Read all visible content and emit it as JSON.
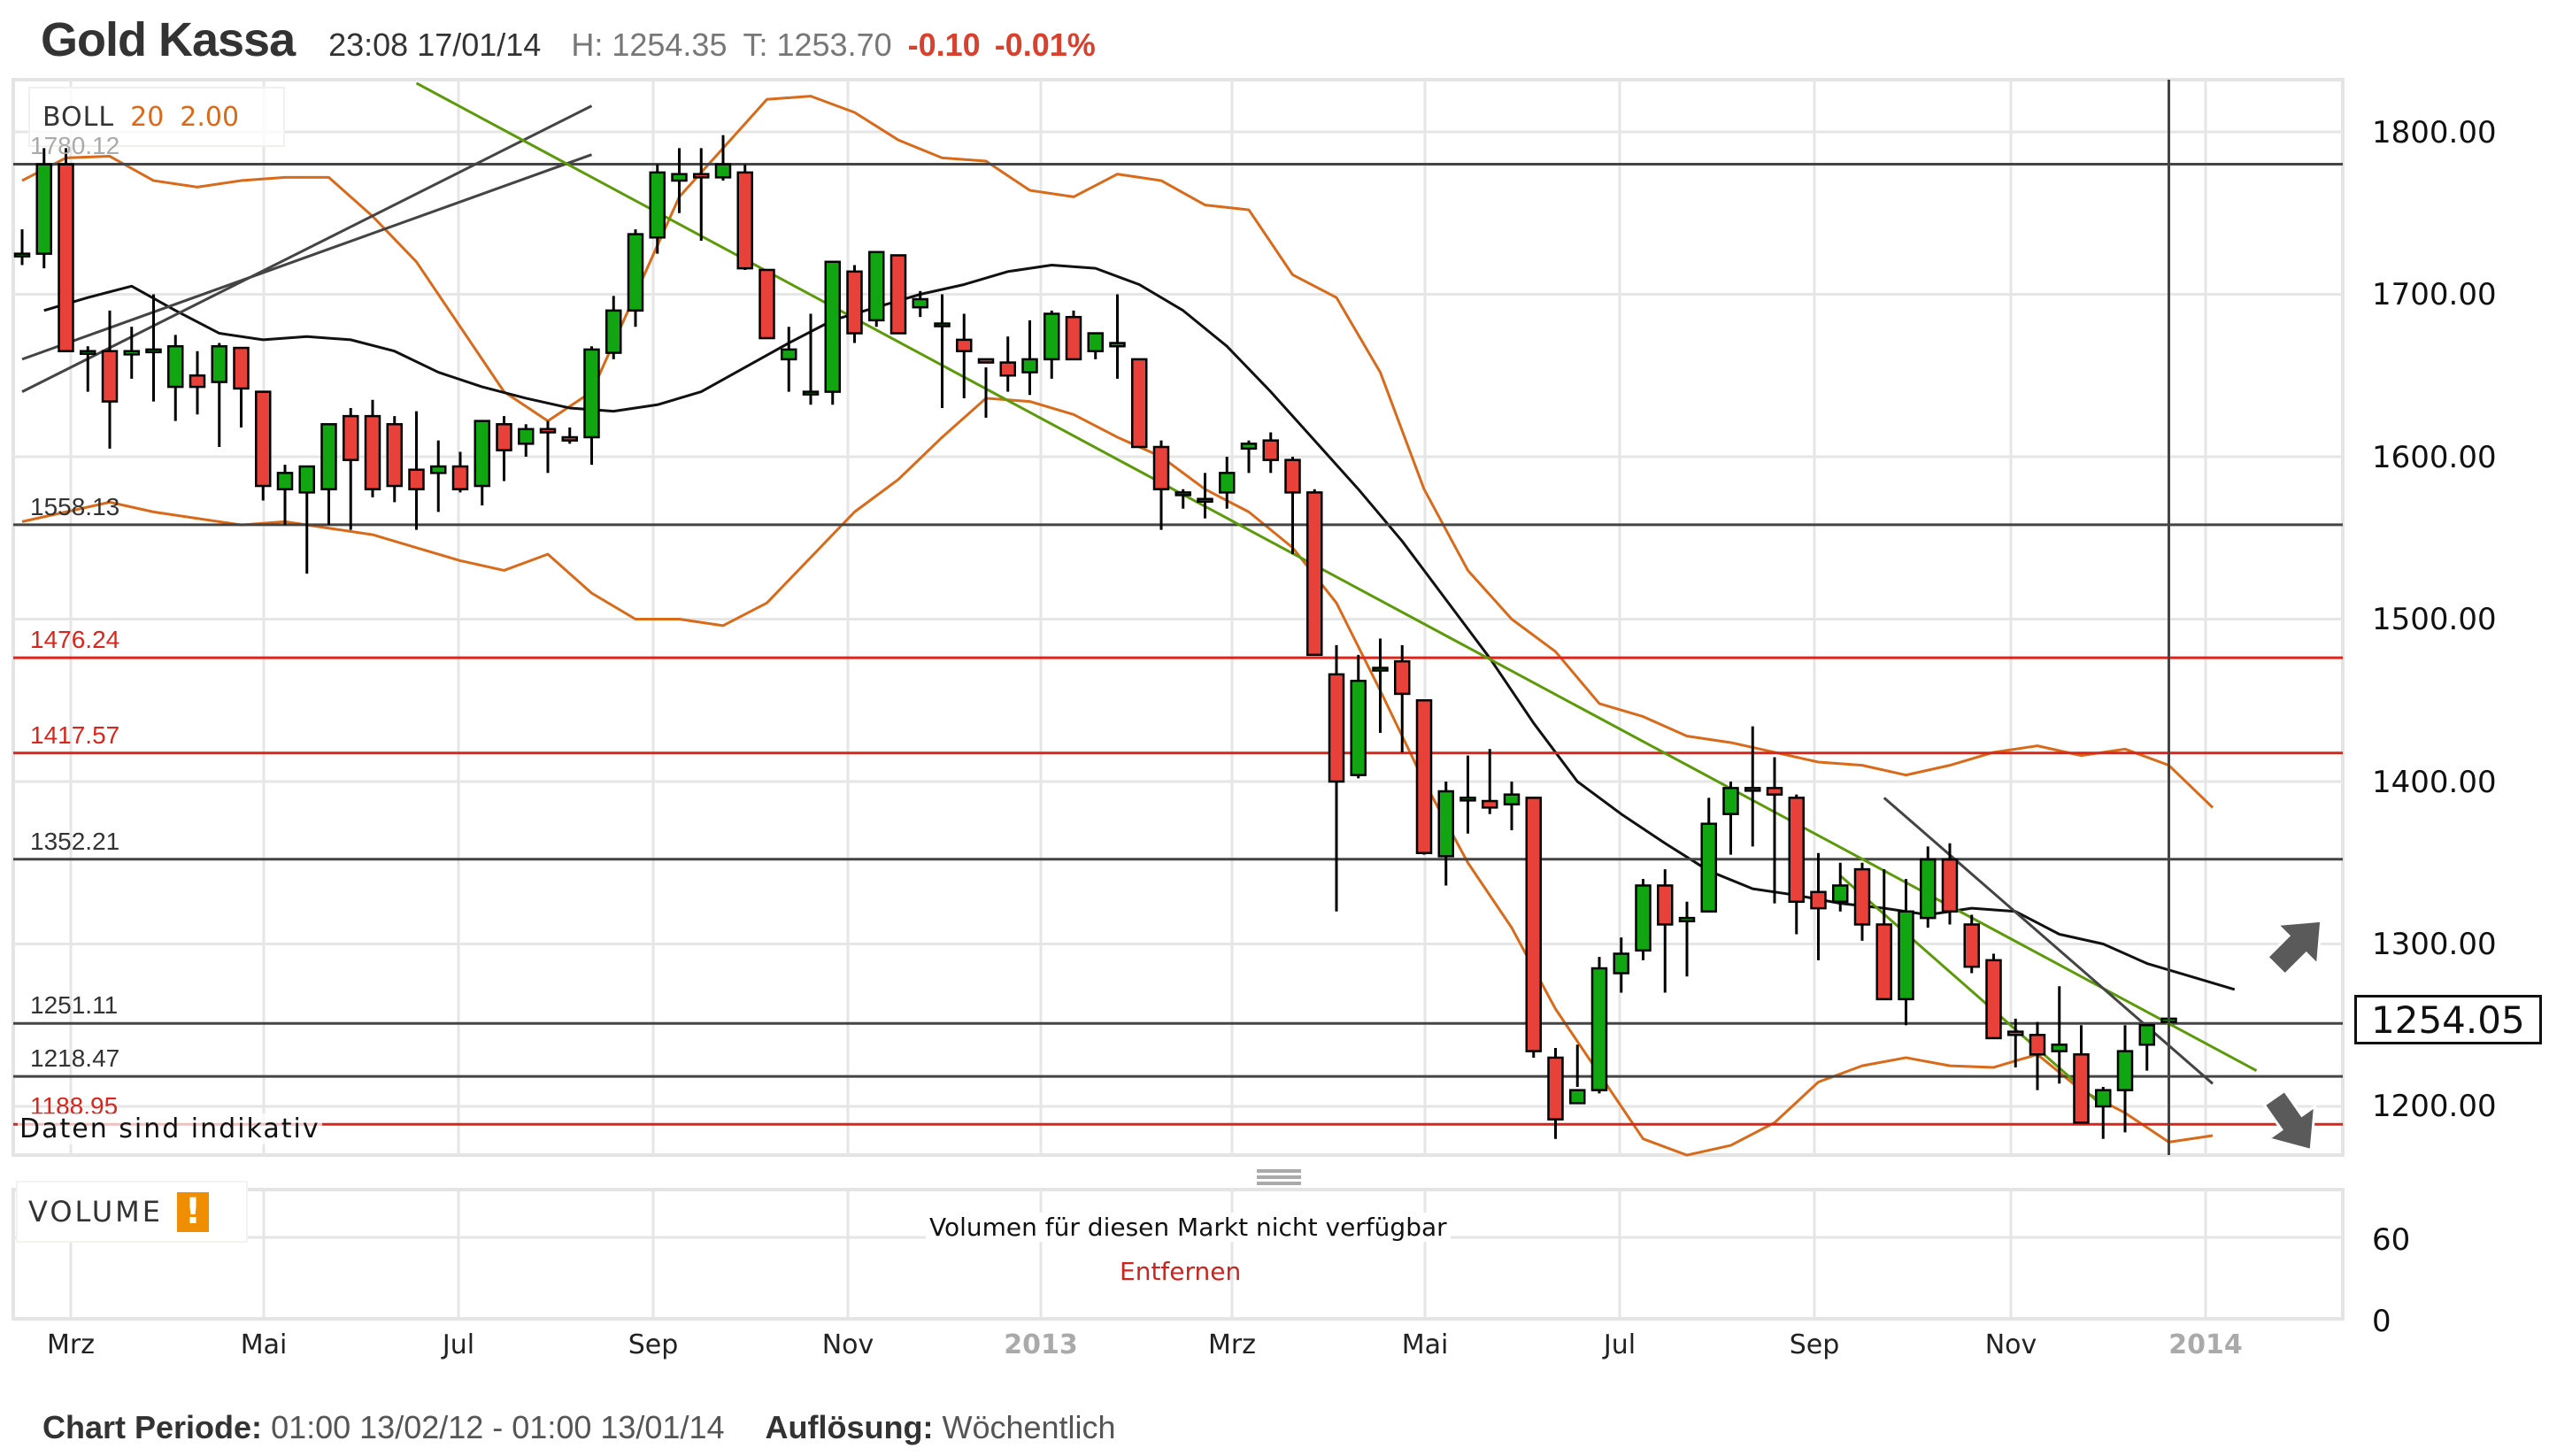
{
  "header": {
    "title": "Gold Kassa",
    "timestamp": "23:08 17/01/14",
    "high": "H: 1254.35",
    "low": "T: 1253.70",
    "change": "-0.10",
    "change_pct": "-0.01%"
  },
  "indicator_legend": {
    "name": "BOLL",
    "period": "20",
    "stddev": "2.00"
  },
  "levels": [
    {
      "value": 1780.12,
      "label": "1780.12",
      "color": "#444444",
      "label_color": "#aaaaaa"
    },
    {
      "value": 1558.13,
      "label": "1558.13",
      "color": "#444444",
      "label_color": "#333333"
    },
    {
      "value": 1476.24,
      "label": "1476.24",
      "color": "#d9261c",
      "label_color": "#d9261c"
    },
    {
      "value": 1417.57,
      "label": "1417.57",
      "color": "#d9261c",
      "label_color": "#d9261c"
    },
    {
      "value": 1352.21,
      "label": "1352.21",
      "color": "#444444",
      "label_color": "#333333"
    },
    {
      "value": 1251.11,
      "label": "1251.11",
      "color": "#444444",
      "label_color": "#333333"
    },
    {
      "value": 1218.47,
      "label": "1218.47",
      "color": "#444444",
      "label_color": "#333333"
    },
    {
      "value": 1188.95,
      "label": "1188.95",
      "color": "#d9261c",
      "label_color": "#d9261c"
    }
  ],
  "disclaimer": "Daten sind indikativ",
  "y_axis": {
    "ticks": [
      "1800.00",
      "1700.00",
      "1600.00",
      "1500.00",
      "1400.00",
      "1300.00",
      "1200.00"
    ],
    "current_price": "1254.05"
  },
  "x_axis": {
    "labels": [
      {
        "text": "Mrz",
        "x": 72,
        "year": false
      },
      {
        "text": "Mai",
        "x": 290,
        "year": false
      },
      {
        "text": "Jul",
        "x": 510,
        "year": false
      },
      {
        "text": "Sep",
        "x": 730,
        "year": false
      },
      {
        "text": "Nov",
        "x": 950,
        "year": false
      },
      {
        "text": "2013",
        "x": 1168,
        "year": true
      },
      {
        "text": "Mrz",
        "x": 1384,
        "year": false
      },
      {
        "text": "Mai",
        "x": 1602,
        "year": false
      },
      {
        "text": "Jul",
        "x": 1822,
        "year": false
      },
      {
        "text": "Sep",
        "x": 2042,
        "year": false
      },
      {
        "text": "Nov",
        "x": 2264,
        "year": false
      },
      {
        "text": "2014",
        "x": 2484,
        "year": true
      }
    ]
  },
  "volume_panel": {
    "name": "VOLUME",
    "warning_icon": "!",
    "message": "Volumen für diesen Markt nicht verfügbar",
    "remove_link": "Entfernen",
    "ticks": [
      "60",
      "0"
    ]
  },
  "footer": {
    "period_label": "Chart Periode:",
    "period_value": "01:00 13/02/12 - 01:00 13/01/14",
    "resolution_label": "Auflösung:",
    "resolution_value": "Wöchentlich"
  },
  "colors": {
    "up": "#12a512",
    "down": "#e8413a",
    "boll_band": "#d96a1a",
    "boll_mid": "#111111",
    "trend_green": "#5c9a0a",
    "trend_gray": "#444444",
    "level_red": "#d9261c"
  },
  "chart_data": {
    "type": "candlestick",
    "title": "Gold Kassa",
    "indicator": "BOLL 20 2.00",
    "xlabel": "",
    "ylabel": "",
    "ylim": [
      1165,
      1830
    ],
    "x_tick_labels": [
      "Mrz",
      "Mai",
      "Jul",
      "Sep",
      "Nov",
      "2013",
      "Mrz",
      "Mai",
      "Jul",
      "Sep",
      "Nov",
      "2014"
    ],
    "y_tick_labels": [
      "1200.00",
      "1300.00",
      "1400.00",
      "1500.00",
      "1600.00",
      "1700.00",
      "1800.00"
    ],
    "horizontal_levels": [
      1780.12,
      1558.13,
      1476.24,
      1417.57,
      1352.21,
      1251.11,
      1218.47,
      1188.95
    ],
    "last_price": 1254.05,
    "candles_ohlc": [
      [
        1725,
        1740,
        1718,
        1725
      ],
      [
        1725,
        1790,
        1716,
        1780
      ],
      [
        1780,
        1790,
        1665,
        1665
      ],
      [
        1665,
        1668,
        1640,
        1665
      ],
      [
        1665,
        1690,
        1605,
        1634
      ],
      [
        1663,
        1680,
        1648,
        1665
      ],
      [
        1666,
        1700,
        1634,
        1666
      ],
      [
        1643,
        1675,
        1622,
        1668
      ],
      [
        1650,
        1665,
        1626,
        1643
      ],
      [
        1646,
        1670,
        1606,
        1668
      ],
      [
        1667,
        1667,
        1618,
        1642
      ],
      [
        1640,
        1640,
        1573,
        1582
      ],
      [
        1580,
        1595,
        1558,
        1590
      ],
      [
        1578,
        1586,
        1528,
        1594
      ],
      [
        1580,
        1618,
        1558,
        1620
      ],
      [
        1625,
        1630,
        1555,
        1598
      ],
      [
        1625,
        1635,
        1575,
        1580
      ],
      [
        1620,
        1625,
        1572,
        1582
      ],
      [
        1592,
        1628,
        1555,
        1580
      ],
      [
        1590,
        1610,
        1566,
        1594
      ],
      [
        1594,
        1603,
        1578,
        1580
      ],
      [
        1582,
        1610,
        1570,
        1622
      ],
      [
        1620,
        1625,
        1585,
        1604
      ],
      [
        1608,
        1620,
        1600,
        1617
      ],
      [
        1617,
        1622,
        1590,
        1615
      ],
      [
        1612,
        1618,
        1608,
        1610
      ],
      [
        1612,
        1668,
        1595,
        1666
      ],
      [
        1664,
        1699,
        1660,
        1690
      ],
      [
        1690,
        1740,
        1680,
        1737
      ],
      [
        1735,
        1780,
        1725,
        1775
      ],
      [
        1770,
        1790,
        1750,
        1774
      ],
      [
        1774,
        1790,
        1733,
        1772
      ],
      [
        1772,
        1798,
        1770,
        1780
      ],
      [
        1775,
        1780,
        1715,
        1716
      ],
      [
        1715,
        1715,
        1680,
        1673
      ],
      [
        1660,
        1680,
        1640,
        1666
      ],
      [
        1640,
        1688,
        1632,
        1640
      ],
      [
        1640,
        1690,
        1632,
        1720
      ],
      [
        1714,
        1718,
        1670,
        1676
      ],
      [
        1684,
        1725,
        1680,
        1726
      ],
      [
        1724,
        1724,
        1680,
        1676
      ],
      [
        1692,
        1702,
        1686,
        1697
      ],
      [
        1682,
        1700,
        1630,
        1682
      ],
      [
        1672,
        1688,
        1636,
        1665
      ],
      [
        1660,
        1655,
        1624,
        1658
      ],
      [
        1658,
        1674,
        1640,
        1650
      ],
      [
        1652,
        1684,
        1638,
        1660
      ],
      [
        1660,
        1690,
        1648,
        1688
      ],
      [
        1686,
        1690,
        1660,
        1660
      ],
      [
        1665,
        1676,
        1660,
        1676
      ],
      [
        1668,
        1700,
        1648,
        1670
      ],
      [
        1660,
        1660,
        1610,
        1606
      ],
      [
        1606,
        1610,
        1555,
        1580
      ],
      [
        1578,
        1580,
        1568,
        1578
      ],
      [
        1574,
        1590,
        1562,
        1574
      ],
      [
        1578,
        1600,
        1568,
        1590
      ],
      [
        1605,
        1610,
        1590,
        1608
      ],
      [
        1610,
        1615,
        1590,
        1598
      ],
      [
        1598,
        1600,
        1540,
        1578
      ],
      [
        1578,
        1580,
        1480,
        1478
      ],
      [
        1466,
        1484,
        1320,
        1400
      ],
      [
        1404,
        1478,
        1402,
        1462
      ],
      [
        1470,
        1488,
        1430,
        1470
      ],
      [
        1474,
        1484,
        1418,
        1454
      ],
      [
        1450,
        1450,
        1355,
        1356
      ],
      [
        1354,
        1400,
        1336,
        1394
      ],
      [
        1390,
        1416,
        1368,
        1390
      ],
      [
        1388,
        1420,
        1380,
        1384
      ],
      [
        1386,
        1400,
        1370,
        1392
      ],
      [
        1390,
        1390,
        1230,
        1234
      ],
      [
        1230,
        1236,
        1180,
        1192
      ],
      [
        1202,
        1238,
        1212,
        1210
      ],
      [
        1210,
        1292,
        1208,
        1285
      ],
      [
        1282,
        1304,
        1270,
        1294
      ],
      [
        1296,
        1340,
        1290,
        1336
      ],
      [
        1336,
        1346,
        1270,
        1312
      ],
      [
        1314,
        1326,
        1280,
        1316
      ],
      [
        1320,
        1390,
        1320,
        1374
      ],
      [
        1380,
        1400,
        1355,
        1396
      ],
      [
        1396,
        1434,
        1360,
        1396
      ],
      [
        1396,
        1415,
        1325,
        1392
      ],
      [
        1390,
        1392,
        1306,
        1326
      ],
      [
        1332,
        1356,
        1290,
        1322
      ],
      [
        1326,
        1350,
        1320,
        1336
      ],
      [
        1346,
        1350,
        1302,
        1312
      ],
      [
        1312,
        1346,
        1270,
        1266
      ],
      [
        1266,
        1340,
        1250,
        1320
      ],
      [
        1316,
        1360,
        1310,
        1352
      ],
      [
        1352,
        1362,
        1312,
        1320
      ],
      [
        1312,
        1318,
        1282,
        1286
      ],
      [
        1290,
        1294,
        1250,
        1242
      ],
      [
        1246,
        1254,
        1224,
        1244
      ],
      [
        1244,
        1252,
        1210,
        1232
      ],
      [
        1234,
        1274,
        1214,
        1238
      ],
      [
        1232,
        1250,
        1204,
        1190
      ],
      [
        1200,
        1212,
        1180,
        1210
      ],
      [
        1210,
        1250,
        1184,
        1234
      ],
      [
        1238,
        1248,
        1222,
        1250
      ],
      [
        1252,
        1254,
        1224,
        1254
      ]
    ],
    "bollinger_mid": [
      [
        1,
        1690
      ],
      [
        3,
        1698
      ],
      [
        5,
        1705
      ],
      [
        7,
        1690
      ],
      [
        9,
        1676
      ],
      [
        11,
        1672
      ],
      [
        13,
        1674
      ],
      [
        15,
        1672
      ],
      [
        17,
        1665
      ],
      [
        19,
        1652
      ],
      [
        21,
        1643
      ],
      [
        23,
        1636
      ],
      [
        25,
        1630
      ],
      [
        27,
        1628
      ],
      [
        29,
        1632
      ],
      [
        31,
        1640
      ],
      [
        33,
        1655
      ],
      [
        35,
        1670
      ],
      [
        37,
        1684
      ],
      [
        39,
        1692
      ],
      [
        41,
        1700
      ],
      [
        43,
        1706
      ],
      [
        45,
        1714
      ],
      [
        47,
        1718
      ],
      [
        49,
        1716
      ],
      [
        51,
        1706
      ],
      [
        53,
        1690
      ],
      [
        55,
        1668
      ],
      [
        57,
        1640
      ],
      [
        59,
        1610
      ],
      [
        61,
        1580
      ],
      [
        63,
        1548
      ],
      [
        65,
        1512
      ],
      [
        67,
        1476
      ],
      [
        69,
        1436
      ],
      [
        71,
        1400
      ],
      [
        73,
        1380
      ],
      [
        75,
        1362
      ],
      [
        77,
        1345
      ],
      [
        79,
        1334
      ],
      [
        81,
        1330
      ],
      [
        83,
        1325
      ],
      [
        85,
        1322
      ],
      [
        87,
        1318
      ],
      [
        89,
        1322
      ],
      [
        91,
        1320
      ],
      [
        93,
        1306
      ],
      [
        95,
        1300
      ],
      [
        97,
        1288
      ],
      [
        99,
        1280
      ],
      [
        101,
        1272
      ]
    ],
    "bollinger_upper": [
      [
        0,
        1770
      ],
      [
        2,
        1784
      ],
      [
        4,
        1785
      ],
      [
        6,
        1770
      ],
      [
        8,
        1766
      ],
      [
        10,
        1770
      ],
      [
        12,
        1772
      ],
      [
        14,
        1772
      ],
      [
        16,
        1748
      ],
      [
        18,
        1720
      ],
      [
        20,
        1680
      ],
      [
        22,
        1640
      ],
      [
        24,
        1622
      ],
      [
        26,
        1640
      ],
      [
        28,
        1700
      ],
      [
        30,
        1760
      ],
      [
        32,
        1790
      ],
      [
        34,
        1820
      ],
      [
        36,
        1822
      ],
      [
        38,
        1812
      ],
      [
        40,
        1795
      ],
      [
        42,
        1784
      ],
      [
        44,
        1782
      ],
      [
        46,
        1764
      ],
      [
        48,
        1760
      ],
      [
        50,
        1774
      ],
      [
        52,
        1770
      ],
      [
        54,
        1755
      ],
      [
        56,
        1752
      ],
      [
        58,
        1712
      ],
      [
        60,
        1698
      ],
      [
        62,
        1652
      ],
      [
        64,
        1580
      ],
      [
        66,
        1530
      ],
      [
        68,
        1500
      ],
      [
        70,
        1480
      ],
      [
        72,
        1448
      ],
      [
        74,
        1440
      ],
      [
        76,
        1428
      ],
      [
        78,
        1424
      ],
      [
        80,
        1418
      ],
      [
        82,
        1412
      ],
      [
        84,
        1410
      ],
      [
        86,
        1404
      ],
      [
        88,
        1410
      ],
      [
        90,
        1418
      ],
      [
        92,
        1422
      ],
      [
        94,
        1416
      ],
      [
        96,
        1420
      ],
      [
        98,
        1410
      ],
      [
        100,
        1384
      ]
    ],
    "bollinger_lower": [
      [
        0,
        1560
      ],
      [
        2,
        1566
      ],
      [
        4,
        1572
      ],
      [
        6,
        1566
      ],
      [
        8,
        1562
      ],
      [
        10,
        1558
      ],
      [
        12,
        1560
      ],
      [
        14,
        1556
      ],
      [
        16,
        1552
      ],
      [
        18,
        1544
      ],
      [
        20,
        1536
      ],
      [
        22,
        1530
      ],
      [
        24,
        1540
      ],
      [
        26,
        1516
      ],
      [
        28,
        1500
      ],
      [
        30,
        1500
      ],
      [
        32,
        1496
      ],
      [
        34,
        1510
      ],
      [
        36,
        1538
      ],
      [
        38,
        1566
      ],
      [
        40,
        1586
      ],
      [
        42,
        1612
      ],
      [
        44,
        1636
      ],
      [
        46,
        1634
      ],
      [
        48,
        1626
      ],
      [
        50,
        1612
      ],
      [
        52,
        1600
      ],
      [
        54,
        1580
      ],
      [
        56,
        1566
      ],
      [
        58,
        1544
      ],
      [
        60,
        1510
      ],
      [
        62,
        1456
      ],
      [
        64,
        1400
      ],
      [
        66,
        1350
      ],
      [
        68,
        1310
      ],
      [
        70,
        1260
      ],
      [
        72,
        1220
      ],
      [
        74,
        1180
      ],
      [
        76,
        1170
      ],
      [
        78,
        1176
      ],
      [
        80,
        1190
      ],
      [
        82,
        1215
      ],
      [
        84,
        1225
      ],
      [
        86,
        1230
      ],
      [
        88,
        1225
      ],
      [
        90,
        1224
      ],
      [
        92,
        1232
      ],
      [
        94,
        1210
      ],
      [
        96,
        1196
      ],
      [
        98,
        1178
      ],
      [
        100,
        1182
      ]
    ],
    "trendlines": [
      {
        "color": "gray",
        "from": [
          0,
          1640
        ],
        "to": [
          26,
          1816
        ]
      },
      {
        "color": "gray",
        "from": [
          0,
          1660
        ],
        "to": [
          26,
          1786
        ]
      },
      {
        "color": "green",
        "from": [
          18,
          1830
        ],
        "to": [
          102,
          1222
        ]
      },
      {
        "color": "green",
        "from": [
          83,
          1342
        ],
        "to": [
          95,
          1200
        ]
      },
      {
        "color": "gray",
        "from": [
          85,
          1390
        ],
        "to": [
          100,
          1214
        ]
      }
    ]
  }
}
